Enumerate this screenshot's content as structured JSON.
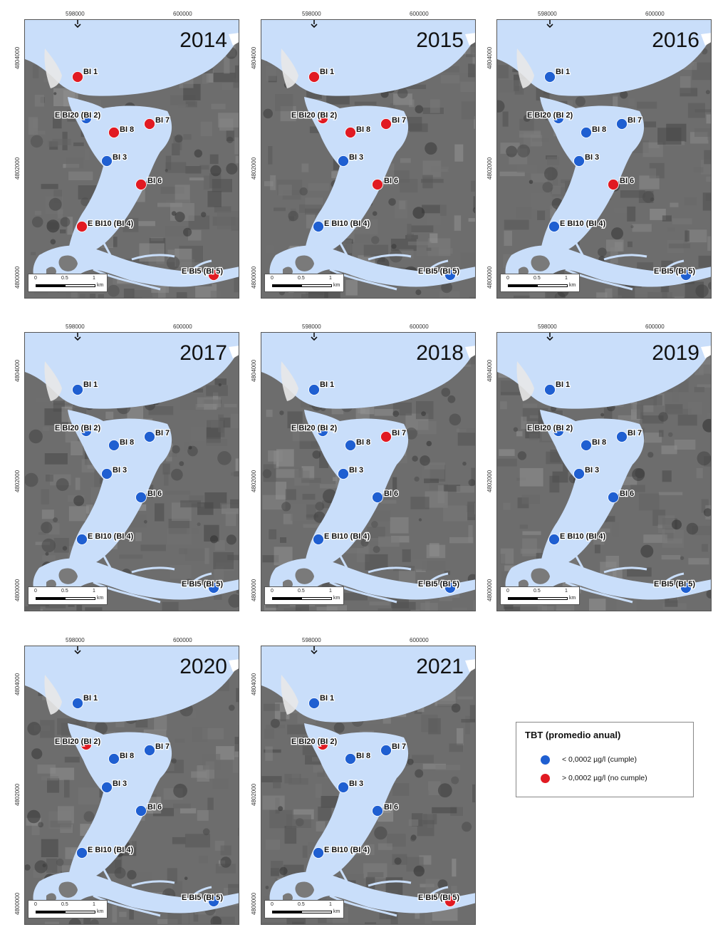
{
  "axis": {
    "x_ticks": [
      "598000",
      "600000"
    ],
    "y_ticks": [
      "4804000",
      "4802000",
      "4800000"
    ]
  },
  "scalebar": {
    "ticks": [
      "0",
      "0.5",
      "1"
    ],
    "unit": "km"
  },
  "station_names": [
    "BI 1",
    "E BI20 (BI 2)",
    "BI 8",
    "BI 7",
    "BI 3",
    "BI 6",
    "E BI10 (BI 4)",
    "E BI5 (BI 5)"
  ],
  "colors": {
    "cumple": "#1f5fd1",
    "no_cumple": "#e11a22",
    "water": "#c9defa",
    "land": "#6e6e6e"
  },
  "panels": [
    {
      "year": "2014",
      "status": [
        "no",
        "si",
        "no",
        "no",
        "si",
        "no",
        "no",
        "no"
      ]
    },
    {
      "year": "2015",
      "status": [
        "no",
        "no",
        "no",
        "no",
        "si",
        "no",
        "si",
        "si"
      ]
    },
    {
      "year": "2016",
      "status": [
        "si",
        "si",
        "si",
        "si",
        "si",
        "no",
        "si",
        "si"
      ]
    },
    {
      "year": "2017",
      "status": [
        "si",
        "si",
        "si",
        "si",
        "si",
        "si",
        "si",
        "si"
      ]
    },
    {
      "year": "2018",
      "status": [
        "si",
        "si",
        "si",
        "no",
        "si",
        "si",
        "si",
        "si"
      ]
    },
    {
      "year": "2019",
      "status": [
        "si",
        "si",
        "si",
        "si",
        "si",
        "si",
        "si",
        "si"
      ]
    },
    {
      "year": "2020",
      "status": [
        "si",
        "no",
        "si",
        "si",
        "si",
        "si",
        "si",
        "si"
      ]
    },
    {
      "year": "2021",
      "status": [
        "si",
        "no",
        "si",
        "si",
        "si",
        "si",
        "si",
        "no"
      ]
    }
  ],
  "legend": {
    "title": "TBT (promedio anual)",
    "items": [
      {
        "label": "< 0,0002 µg/l (cumple)",
        "color": "#1f5fd1"
      },
      {
        "label": "> 0,0002 µg/l (no cumple)",
        "color": "#e11a22"
      }
    ]
  }
}
